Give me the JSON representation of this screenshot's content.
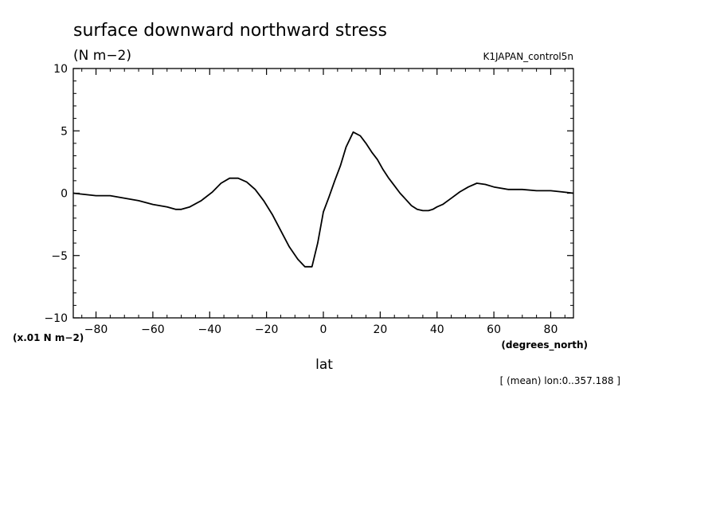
{
  "chart_data": {
    "type": "line",
    "title": "surface downward northward stress",
    "units": "(N m−2)",
    "dataset": "K1JAPAN_control5n",
    "scale_note": "(x.01 N m−2)",
    "xlabel": "lat",
    "x_units": "(degrees_north)",
    "footnote": "[ (mean) lon:0..357.188 ]",
    "xlim": [
      -88,
      88
    ],
    "ylim": [
      -10,
      10
    ],
    "x_ticks": [
      -80,
      -60,
      -40,
      -20,
      0,
      20,
      40,
      60,
      80
    ],
    "x_tick_labels": [
      "−80",
      "−60",
      "−40",
      "−20",
      "0",
      "20",
      "40",
      "60",
      "80"
    ],
    "y_ticks": [
      10,
      5,
      0,
      -5,
      -10
    ],
    "y_tick_labels": [
      "10",
      "5",
      "0",
      "−5",
      "−10"
    ],
    "grid": false,
    "series": [
      {
        "x": [
          -88,
          -80,
          -75,
          -70,
          -65,
          -60,
          -55,
          -52,
          -50,
          -47,
          -43,
          -39,
          -36,
          -33,
          -30,
          -27,
          -24,
          -21,
          -18,
          -15,
          -12,
          -9,
          -6.5,
          -4,
          -2,
          0,
          2,
          4,
          6,
          8,
          10.5,
          13,
          15,
          17,
          19,
          21,
          23,
          25,
          27,
          29,
          31,
          33,
          35,
          37,
          38.5,
          40,
          42,
          45,
          48,
          51,
          54,
          57,
          60,
          65,
          70,
          75,
          80,
          84,
          88
        ],
        "y": [
          0.0,
          -0.2,
          -0.2,
          -0.4,
          -0.6,
          -0.9,
          -1.1,
          -1.3,
          -1.3,
          -1.1,
          -0.6,
          0.1,
          0.8,
          1.2,
          1.2,
          0.9,
          0.3,
          -0.6,
          -1.7,
          -3.0,
          -4.3,
          -5.3,
          -5.9,
          -5.9,
          -4.0,
          -1.5,
          -0.3,
          1.0,
          2.2,
          3.7,
          4.9,
          4.6,
          4.0,
          3.3,
          2.7,
          1.9,
          1.2,
          0.6,
          0.0,
          -0.5,
          -1.0,
          -1.3,
          -1.4,
          -1.4,
          -1.3,
          -1.1,
          -0.9,
          -0.4,
          0.1,
          0.5,
          0.8,
          0.7,
          0.5,
          0.3,
          0.3,
          0.2,
          0.2,
          0.1,
          0.0
        ]
      }
    ]
  }
}
